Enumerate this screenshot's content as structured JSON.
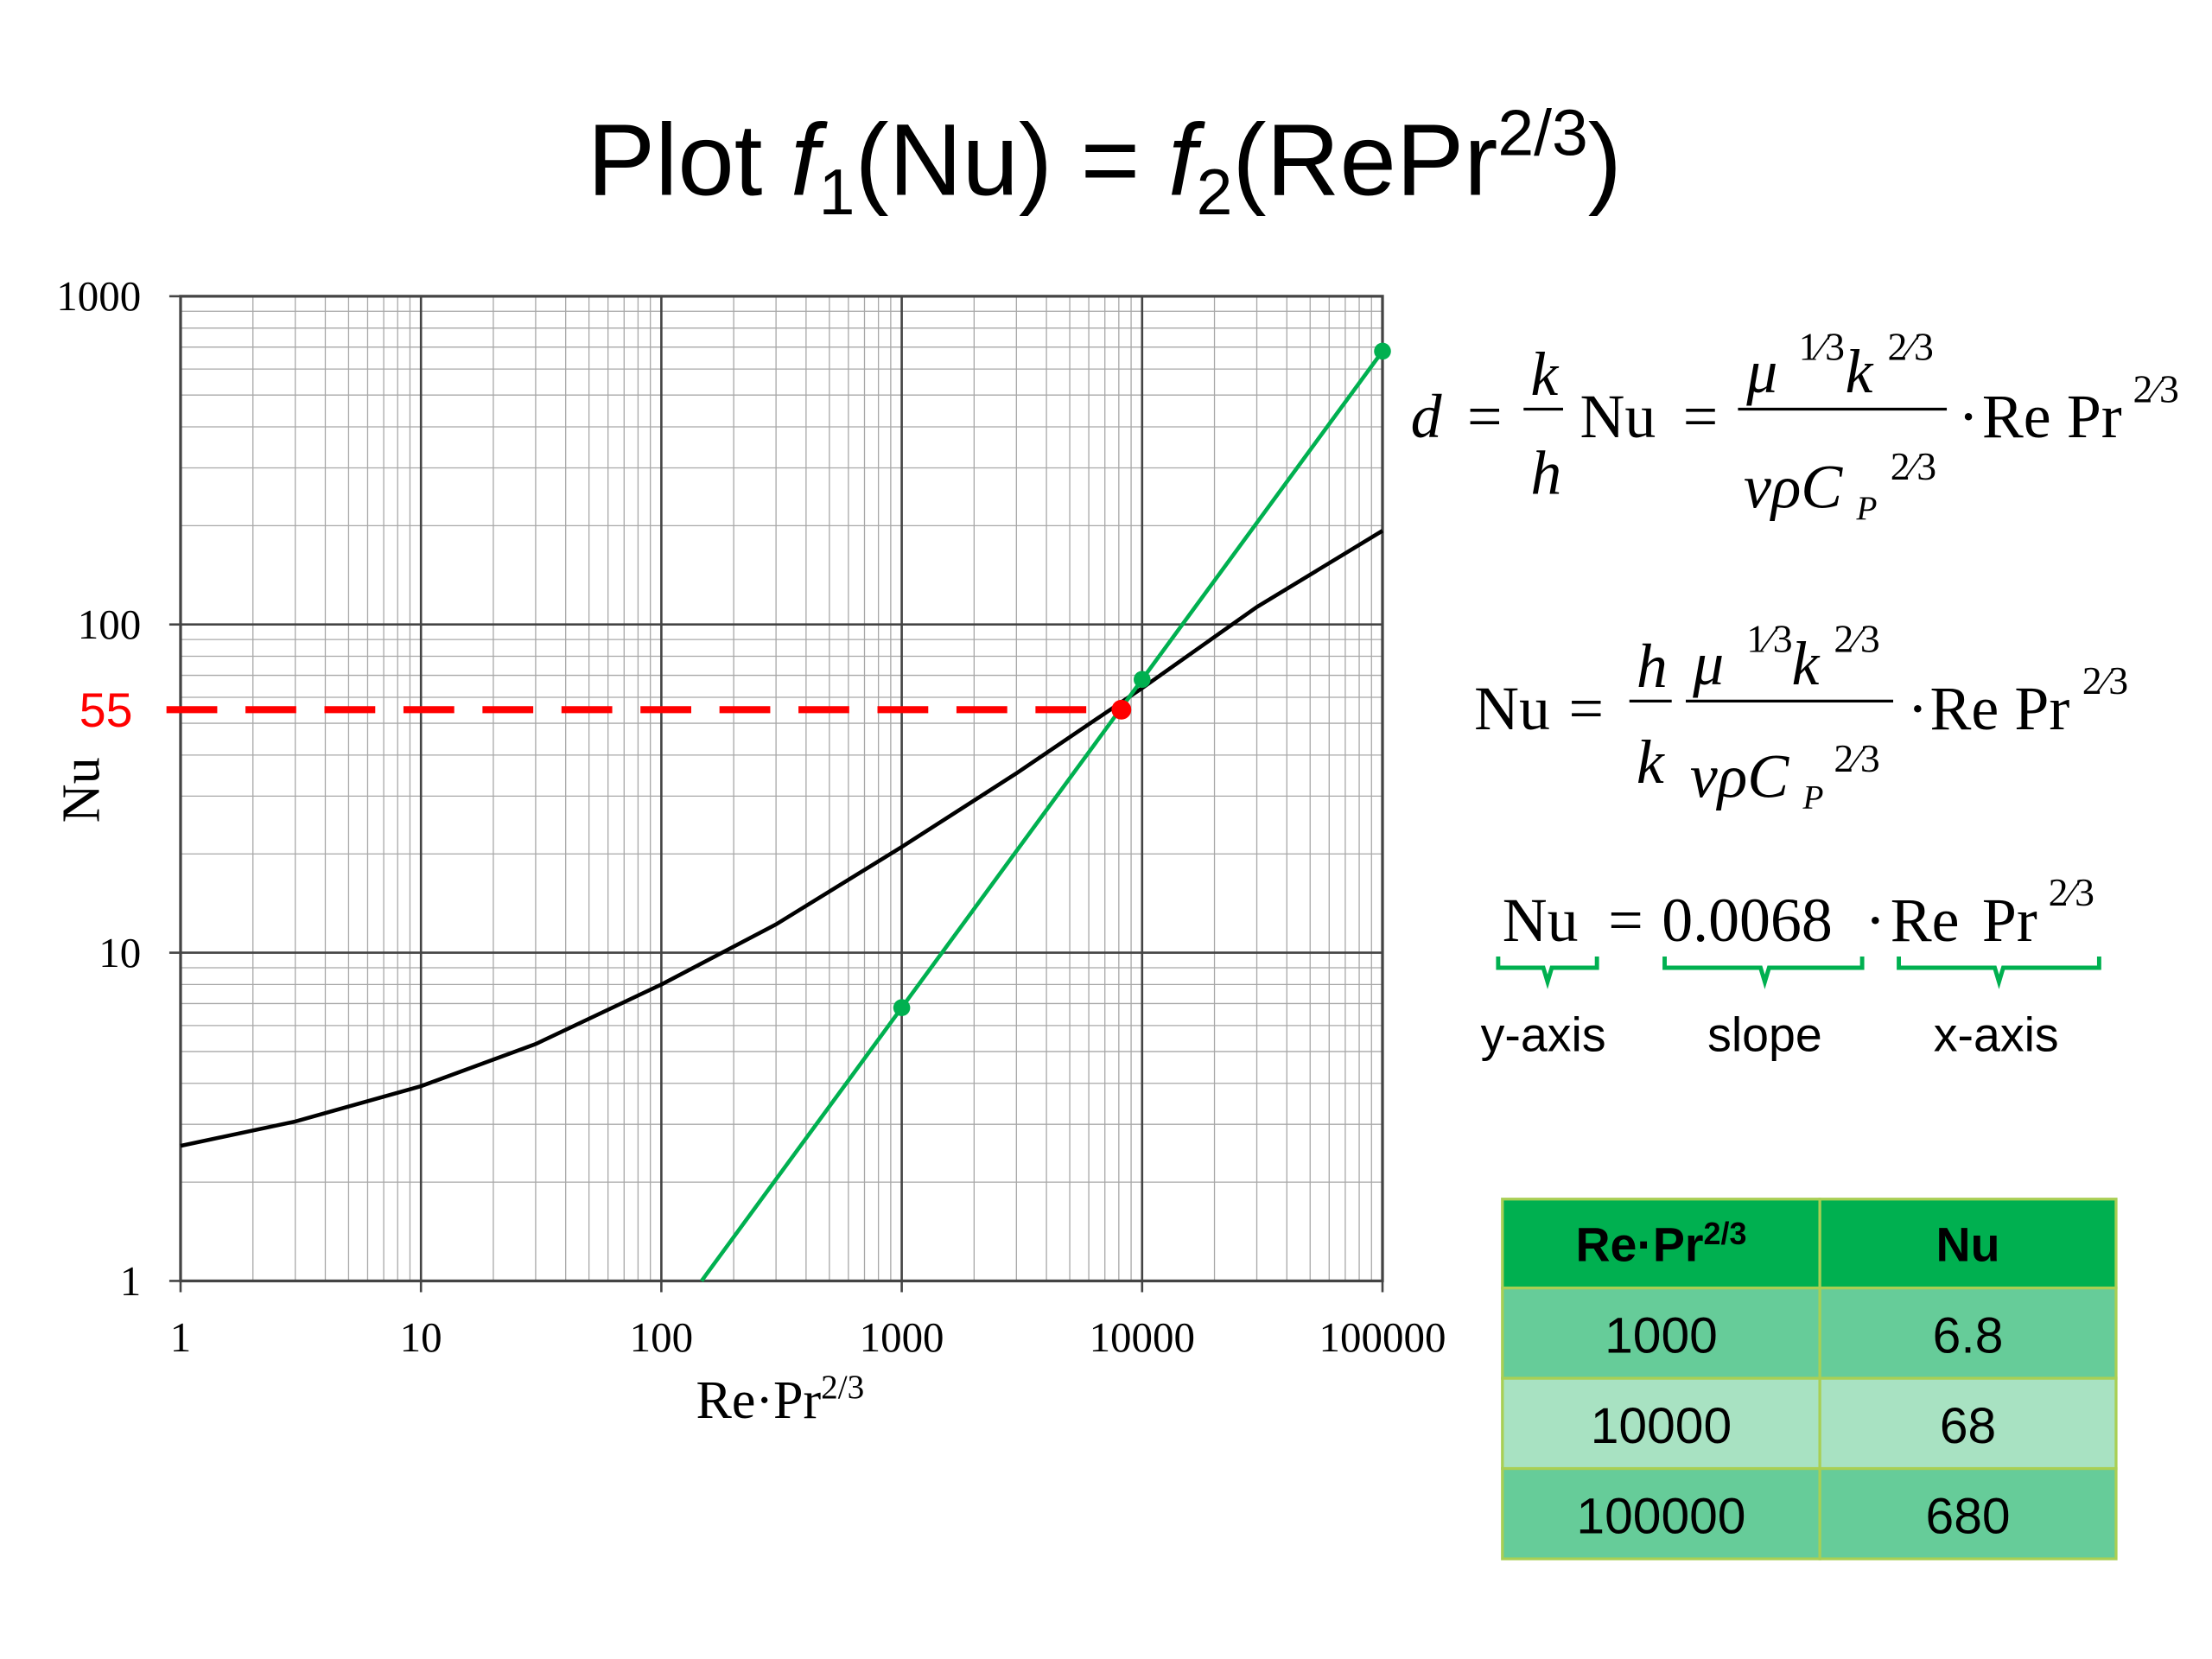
{
  "title": [
    "Plot ",
    "f",
    "1",
    "(Nu) = ",
    "f",
    "2",
    "(RePr",
    "2/3",
    ")"
  ],
  "chart_data": {
    "type": "line",
    "xlog": true,
    "ylog": true,
    "x_label": [
      "Re·Pr",
      "2/3"
    ],
    "y_label": "Nu",
    "xlim": [
      1,
      100000
    ],
    "ylim": [
      1,
      1000
    ],
    "xticks": [
      1,
      10,
      100,
      1000,
      10000,
      100000
    ],
    "yticks": [
      1,
      10,
      100,
      1000
    ],
    "grid": true,
    "minor_grid": true,
    "series": [
      {
        "color": "#000000",
        "x": [
          1,
          3,
          10,
          30,
          100,
          300,
          1000,
          3000,
          10000,
          30000,
          100000
        ],
        "values": [
          2.58,
          3.06,
          3.92,
          5.27,
          8.0,
          12.2,
          21,
          35.2,
          64,
          113,
          193
        ]
      },
      {
        "color": "#00b050",
        "x": [
          147,
          1000,
          10000,
          100000
        ],
        "values": [
          1,
          6.8,
          68,
          680
        ],
        "markers": [
          false,
          true,
          true,
          true
        ]
      }
    ],
    "reference": {
      "x": 8200,
      "y": 55,
      "color": "#ff0000",
      "dashed": true
    }
  },
  "equations": [
    {
      "pieces": [
        "d",
        "=",
        "k",
        "h",
        "Nu",
        "=",
        "μ",
        "1⁄3",
        "k",
        "2⁄3",
        "vρC",
        "P",
        "2⁄3",
        "·",
        "Re",
        "Pr",
        "2⁄3"
      ]
    },
    {
      "pieces": [
        "Nu",
        "=",
        "h",
        "k",
        "μ",
        "1⁄3",
        "k",
        "2⁄3",
        "vρC",
        "P",
        "2⁄3",
        "·",
        "Re",
        "Pr",
        "2⁄3"
      ]
    },
    {
      "pieces": [
        "Nu",
        "=",
        "0.0068",
        "·",
        "Re",
        "Pr",
        "2⁄3"
      ],
      "labels": [
        "y-axis",
        "slope",
        "x-axis"
      ]
    }
  ],
  "table": {
    "header": [
      {
        "text": "Re·Pr",
        "sup": "2/3"
      },
      {
        "text": "Nu"
      }
    ],
    "rows": [
      [
        1000,
        6.8
      ],
      [
        10000,
        68
      ],
      [
        100000,
        680
      ]
    ]
  }
}
